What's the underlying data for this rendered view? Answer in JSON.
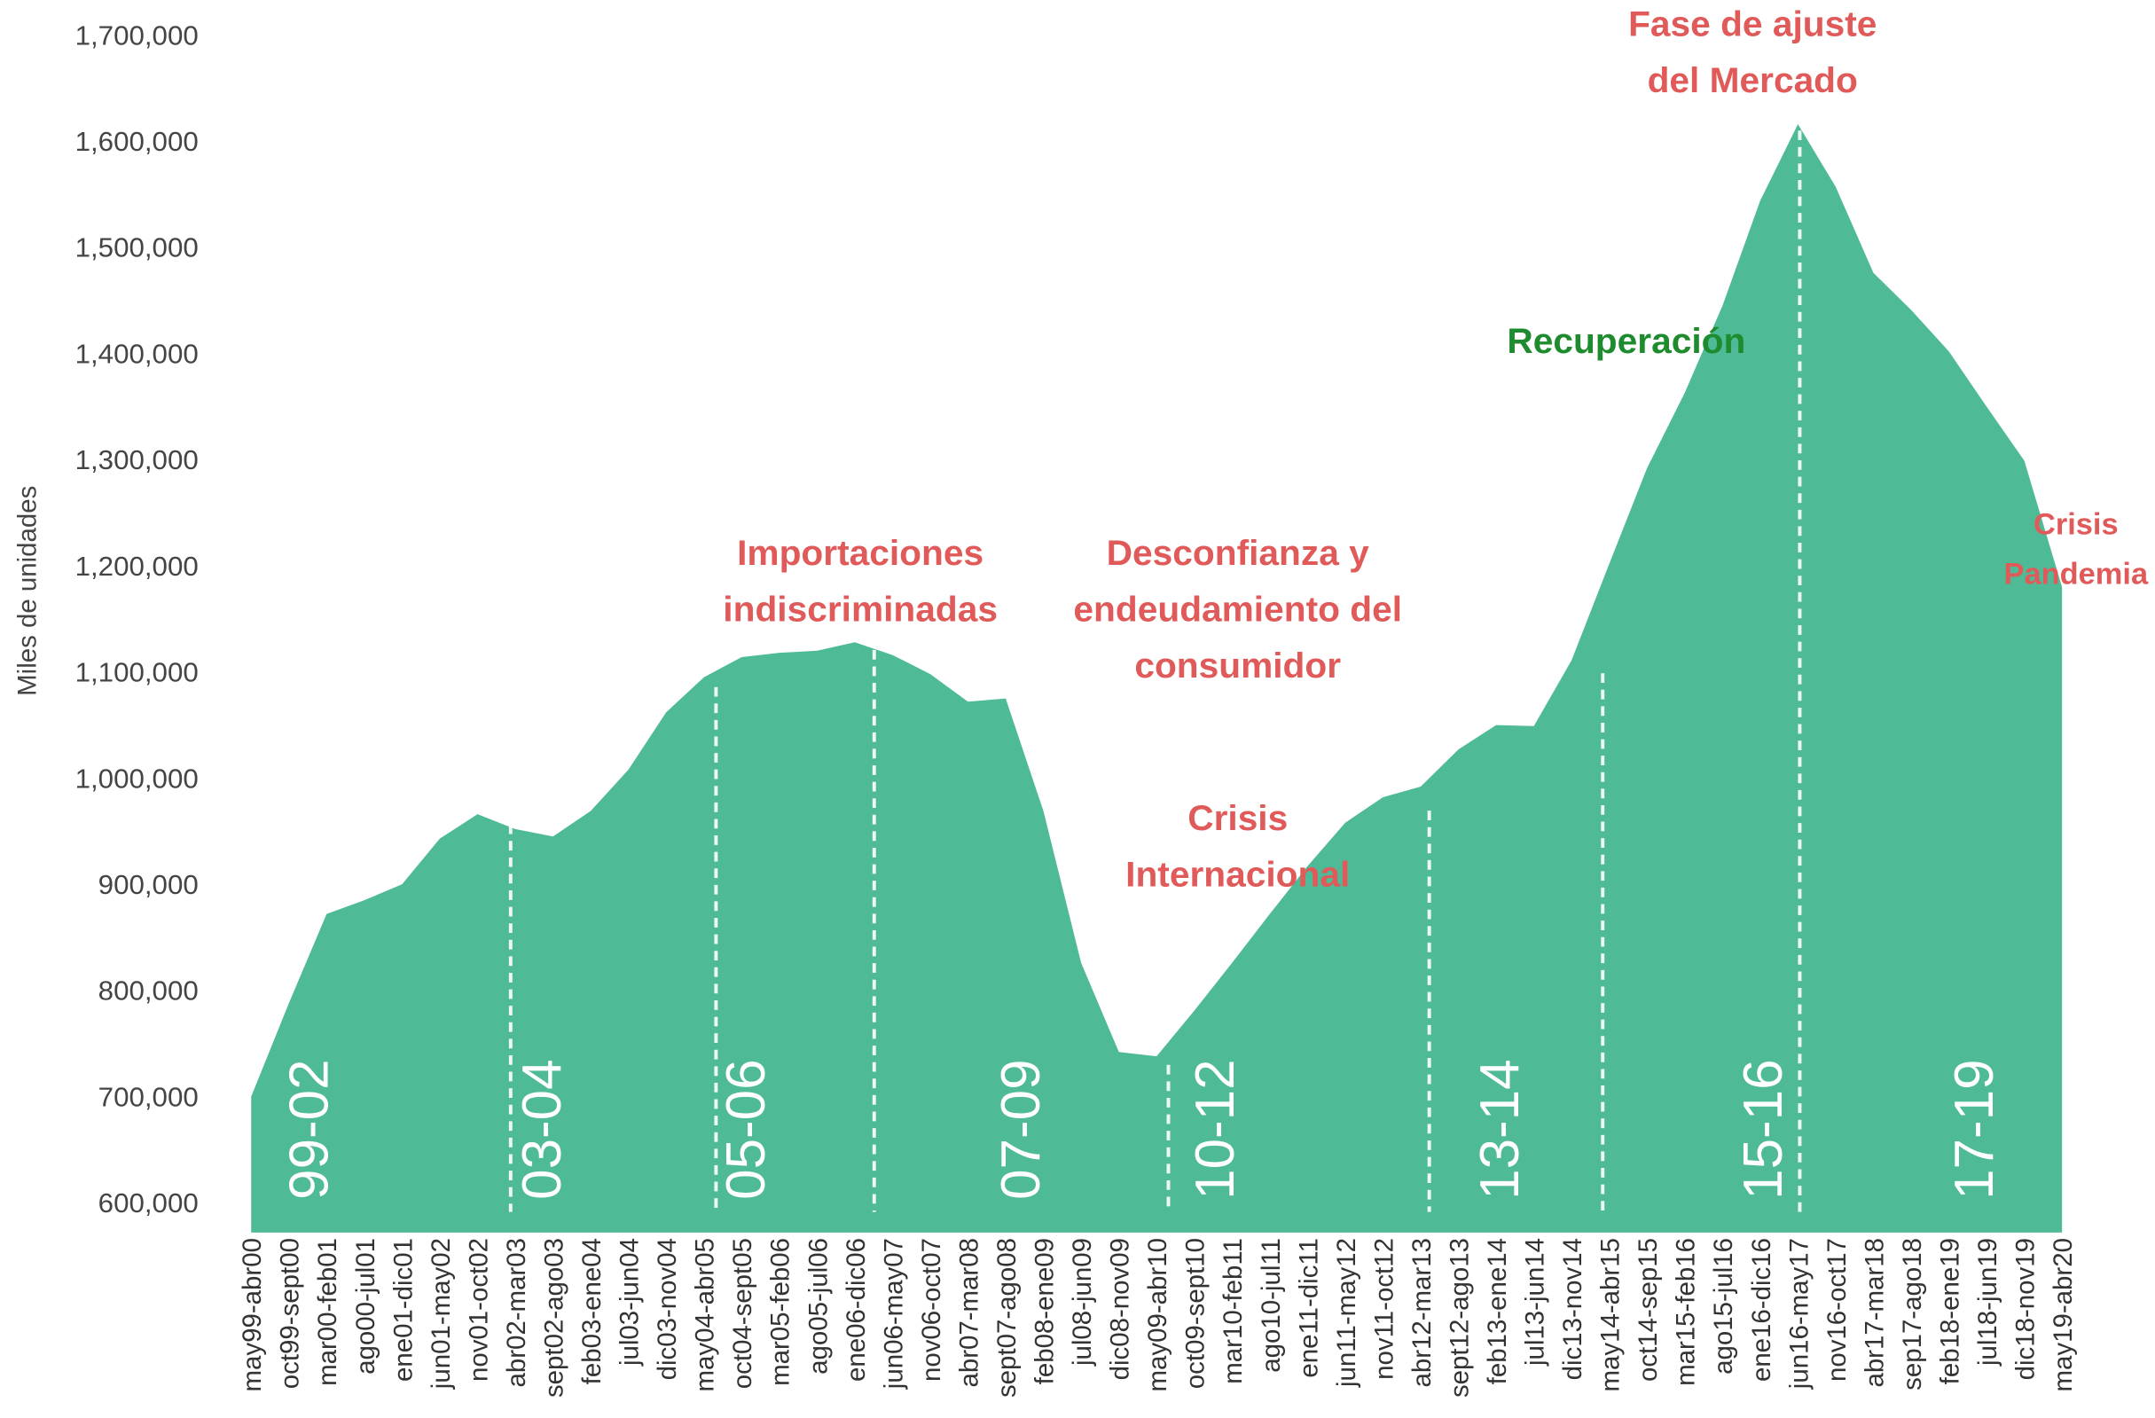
{
  "chart_data": {
    "type": "area",
    "y_label": "Miles de unidades",
    "color": "#4fbb96",
    "categories": [
      "may99-abr00",
      "oct99-sept00",
      "mar00-feb01",
      "ago00-jul01",
      "ene01-dic01",
      "jun01-may02",
      "nov01-oct02",
      "abr02-mar03",
      "sept02-ago03",
      "feb03-ene04",
      "jul03-jun04",
      "dic03-nov04",
      "may04-abr05",
      "oct04-sept05",
      "mar05-feb06",
      "ago05-jul06",
      "ene06-dic06",
      "jun06-may07",
      "nov06-oct07",
      "abr07-mar08",
      "sept07-ago08",
      "feb08-ene09",
      "jul08-jun09",
      "dic08-nov09",
      "may09-abr10",
      "oct09-sept10",
      "mar10-feb11",
      "ago10-jul11",
      "ene11-dic11",
      "jun11-may12",
      "nov11-oct12",
      "abr12-mar13",
      "sept12-ago13",
      "feb13-ene14",
      "jul13-jun14",
      "dic13-nov14",
      "may14-abr15",
      "oct14-sep15",
      "mar15-feb16",
      "ago15-jul16",
      "ene16-dic16",
      "jun16-may17",
      "nov16-oct17",
      "abr17-mar18",
      "sep17-ago18",
      "feb18-ene19",
      "jul18-jun19",
      "dic18-nov19",
      "may19-abr20"
    ],
    "values": [
      700000,
      788000,
      872000,
      885000,
      900000,
      943000,
      966000,
      952000,
      945000,
      969000,
      1008000,
      1062000,
      1095000,
      1114000,
      1118000,
      1120000,
      1128000,
      1116000,
      1098000,
      1072000,
      1075000,
      969000,
      826000,
      742000,
      738000,
      781000,
      826000,
      872000,
      917000,
      958000,
      982000,
      992000,
      1027000,
      1050000,
      1049000,
      1111000,
      1202000,
      1292000,
      1363000,
      1445000,
      1544000,
      1616000,
      1557000,
      1476000,
      1441000,
      1402000,
      1350000,
      1299000,
      1180000
    ],
    "ylim": [
      572000,
      1720000
    ],
    "yticks": [
      {
        "value": 600000,
        "label": "600,000"
      },
      {
        "value": 700000,
        "label": "700,000"
      },
      {
        "value": 800000,
        "label": "800,000"
      },
      {
        "value": 900000,
        "label": "900,000"
      },
      {
        "value": 1000000,
        "label": "1,000,000"
      },
      {
        "value": 1100000,
        "label": "1,100,000"
      },
      {
        "value": 1200000,
        "label": "1,200,000"
      },
      {
        "value": 1300000,
        "label": "1,300,000"
      },
      {
        "value": 1400000,
        "label": "1,400,000"
      },
      {
        "value": 1500000,
        "label": "1,500,000"
      },
      {
        "value": 1600000,
        "label": "1,600,000"
      },
      {
        "value": 1700000,
        "label": "1,700,000"
      }
    ],
    "periods": [
      "99-02",
      "03-04",
      "05-06",
      "07-09",
      "10-12",
      "13-14",
      "15-16",
      "17-19"
    ],
    "annotations": [
      {
        "lines": [
          "Fase de ajuste",
          "del Mercado"
        ],
        "color": "#e05a5a"
      },
      {
        "lines": [
          "Recuperación"
        ],
        "color": "#1e8c2e"
      },
      {
        "lines": [
          "Importaciones",
          "indiscriminadas"
        ],
        "color": "#e05a5a"
      },
      {
        "lines": [
          "Desconfianza y",
          "endeudamiento del",
          "consumidor"
        ],
        "color": "#e05a5a"
      },
      {
        "lines": [
          "Crisis",
          "Internacional"
        ],
        "color": "#e05a5a"
      },
      {
        "lines": [
          "Crisis",
          "Pandemia"
        ],
        "color": "#e05a5a"
      }
    ]
  }
}
